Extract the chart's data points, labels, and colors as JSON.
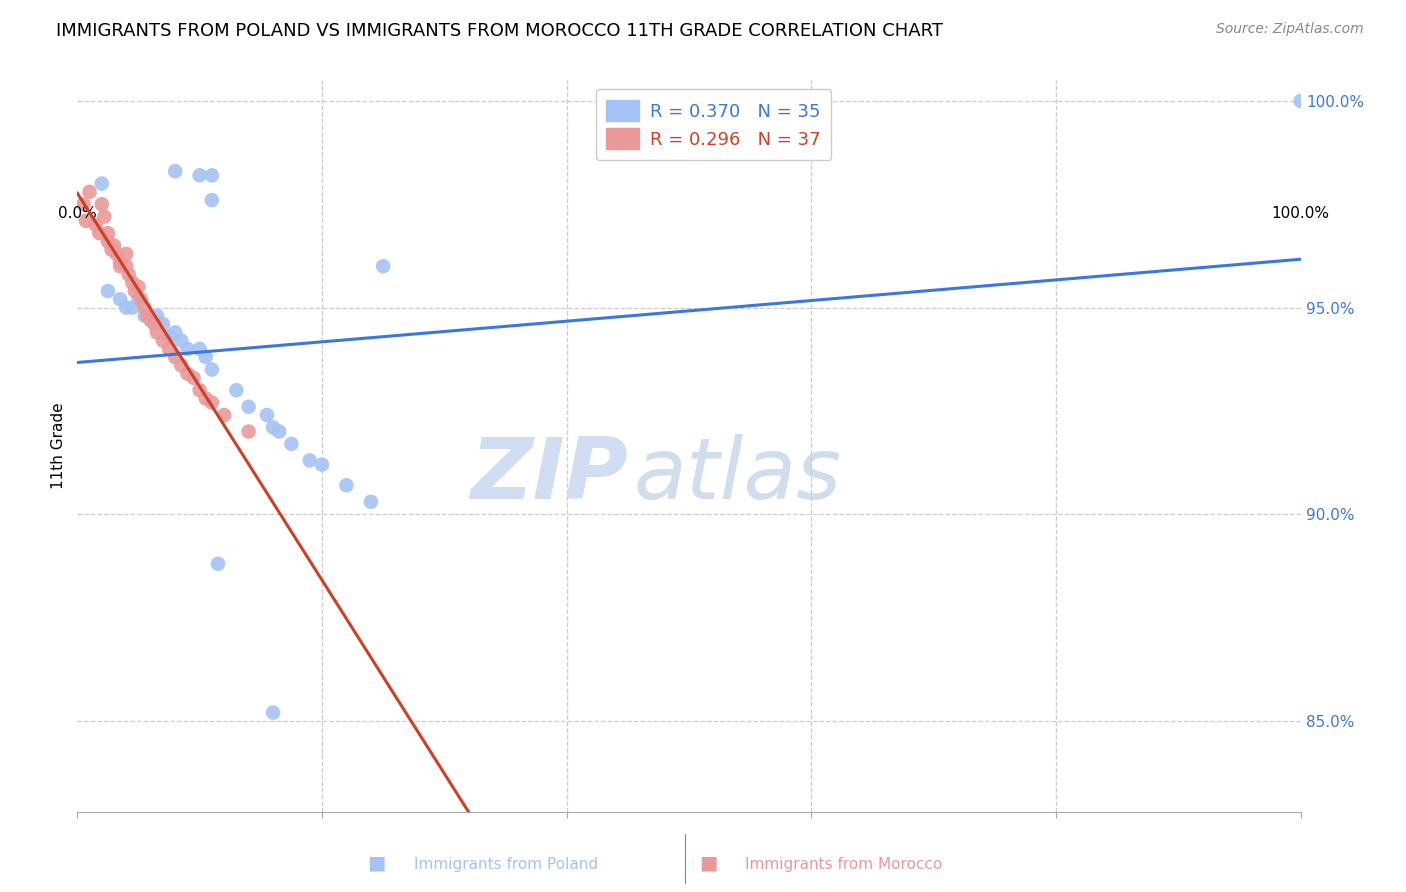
{
  "title": "IMMIGRANTS FROM POLAND VS IMMIGRANTS FROM MOROCCO 11TH GRADE CORRELATION CHART",
  "source": "Source: ZipAtlas.com",
  "ylabel": "11th Grade",
  "xlim": [
    0.0,
    1.0
  ],
  "ylim": [
    0.828,
    1.005
  ],
  "poland_color": "#a4c2f4",
  "morocco_color": "#ea9999",
  "poland_line_color": "#3c78d8",
  "morocco_line_color": "#cc4125",
  "legend_R_poland": "R = 0.370",
  "legend_N_poland": "N = 35",
  "legend_R_morocco": "R = 0.296",
  "legend_N_morocco": "N = 37",
  "watermark_zip": "ZIP",
  "watermark_atlas": "atlas",
  "poland_x": [
    0.02,
    0.08,
    0.1,
    0.11,
    0.11,
    0.25,
    0.025,
    0.035,
    0.04,
    0.045,
    0.05,
    0.055,
    0.06,
    0.065,
    0.07,
    0.075,
    0.08,
    0.085,
    0.09,
    0.1,
    0.105,
    0.11,
    0.13,
    0.14,
    0.155,
    0.16,
    0.165,
    0.175,
    0.19,
    0.2,
    0.22,
    0.24,
    0.115,
    0.16,
    1.0
  ],
  "poland_y": [
    0.98,
    0.983,
    0.982,
    0.982,
    0.976,
    0.96,
    0.954,
    0.952,
    0.95,
    0.95,
    0.952,
    0.948,
    0.947,
    0.948,
    0.946,
    0.943,
    0.944,
    0.942,
    0.94,
    0.94,
    0.938,
    0.935,
    0.93,
    0.926,
    0.924,
    0.921,
    0.92,
    0.917,
    0.913,
    0.912,
    0.907,
    0.903,
    0.888,
    0.852,
    1.0
  ],
  "morocco_x": [
    0.005,
    0.007,
    0.01,
    0.015,
    0.018,
    0.02,
    0.022,
    0.025,
    0.025,
    0.028,
    0.03,
    0.032,
    0.035,
    0.035,
    0.04,
    0.04,
    0.042,
    0.045,
    0.047,
    0.05,
    0.052,
    0.055,
    0.057,
    0.06,
    0.063,
    0.065,
    0.07,
    0.075,
    0.08,
    0.085,
    0.09,
    0.095,
    0.1,
    0.105,
    0.11,
    0.12,
    0.14
  ],
  "morocco_y": [
    0.975,
    0.971,
    0.978,
    0.97,
    0.968,
    0.975,
    0.972,
    0.968,
    0.966,
    0.964,
    0.965,
    0.963,
    0.961,
    0.96,
    0.963,
    0.96,
    0.958,
    0.956,
    0.954,
    0.955,
    0.952,
    0.95,
    0.948,
    0.947,
    0.946,
    0.944,
    0.942,
    0.94,
    0.938,
    0.936,
    0.934,
    0.933,
    0.93,
    0.928,
    0.927,
    0.924,
    0.92
  ],
  "ytick_labels": [
    "100.0%",
    "95.0%",
    "90.0%",
    "85.0%"
  ],
  "ytick_values": [
    1.0,
    0.95,
    0.9,
    0.85
  ],
  "xtick_positions": [
    0.0,
    0.2,
    0.4,
    0.6,
    0.8,
    1.0
  ],
  "grid_color": "#cccccc",
  "background_color": "#ffffff",
  "title_fontsize": 13,
  "axis_label_fontsize": 11,
  "tick_fontsize": 11,
  "legend_fontsize": 13,
  "source_fontsize": 10
}
